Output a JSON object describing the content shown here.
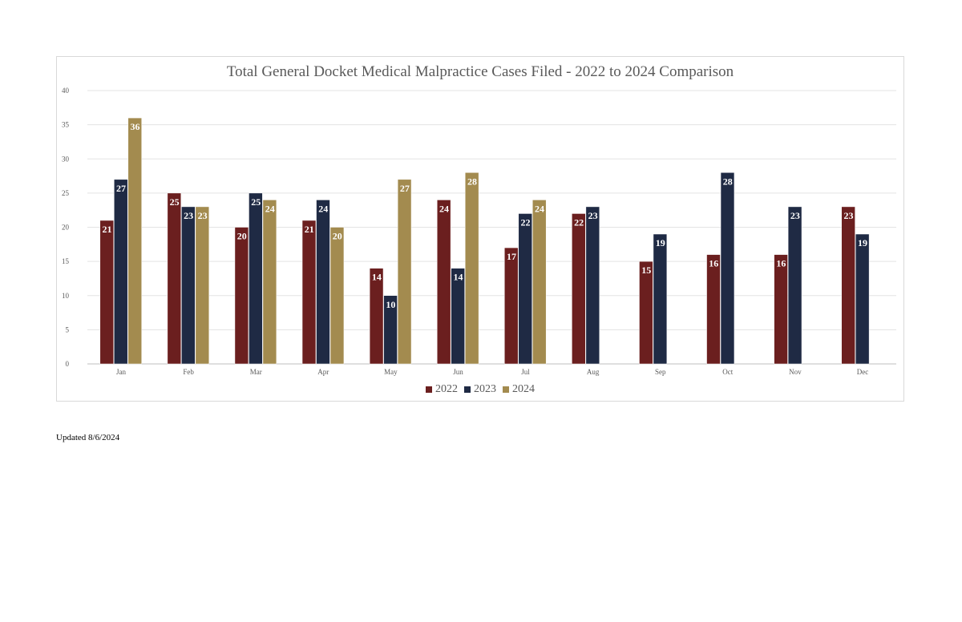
{
  "chart_data": {
    "type": "bar",
    "title": "Total General Docket Medical Malpractice Cases Filed - 2022 to 2024 Comparison",
    "categories": [
      "Jan",
      "Feb",
      "Mar",
      "Apr",
      "May",
      "Jun",
      "Jul",
      "Aug",
      "Sep",
      "Oct",
      "Nov",
      "Dec"
    ],
    "series": [
      {
        "name": "2022",
        "color": "#6b1f1f",
        "values": [
          21,
          25,
          20,
          21,
          14,
          24,
          17,
          22,
          15,
          16,
          16,
          23
        ]
      },
      {
        "name": "2023",
        "color": "#1f2a44",
        "values": [
          27,
          23,
          25,
          24,
          10,
          14,
          22,
          23,
          19,
          28,
          23,
          19
        ]
      },
      {
        "name": "2024",
        "color": "#a38b4f",
        "values": [
          36,
          23,
          24,
          20,
          27,
          28,
          24,
          null,
          null,
          null,
          null,
          null
        ]
      }
    ],
    "ylim": [
      0,
      40
    ],
    "yticks": [
      0,
      5,
      10,
      15,
      20,
      25,
      30,
      35,
      40
    ],
    "grid": true,
    "legend": "bottom-center",
    "data_labels": true
  },
  "footer": {
    "updated": "Updated 8/6/2024"
  }
}
